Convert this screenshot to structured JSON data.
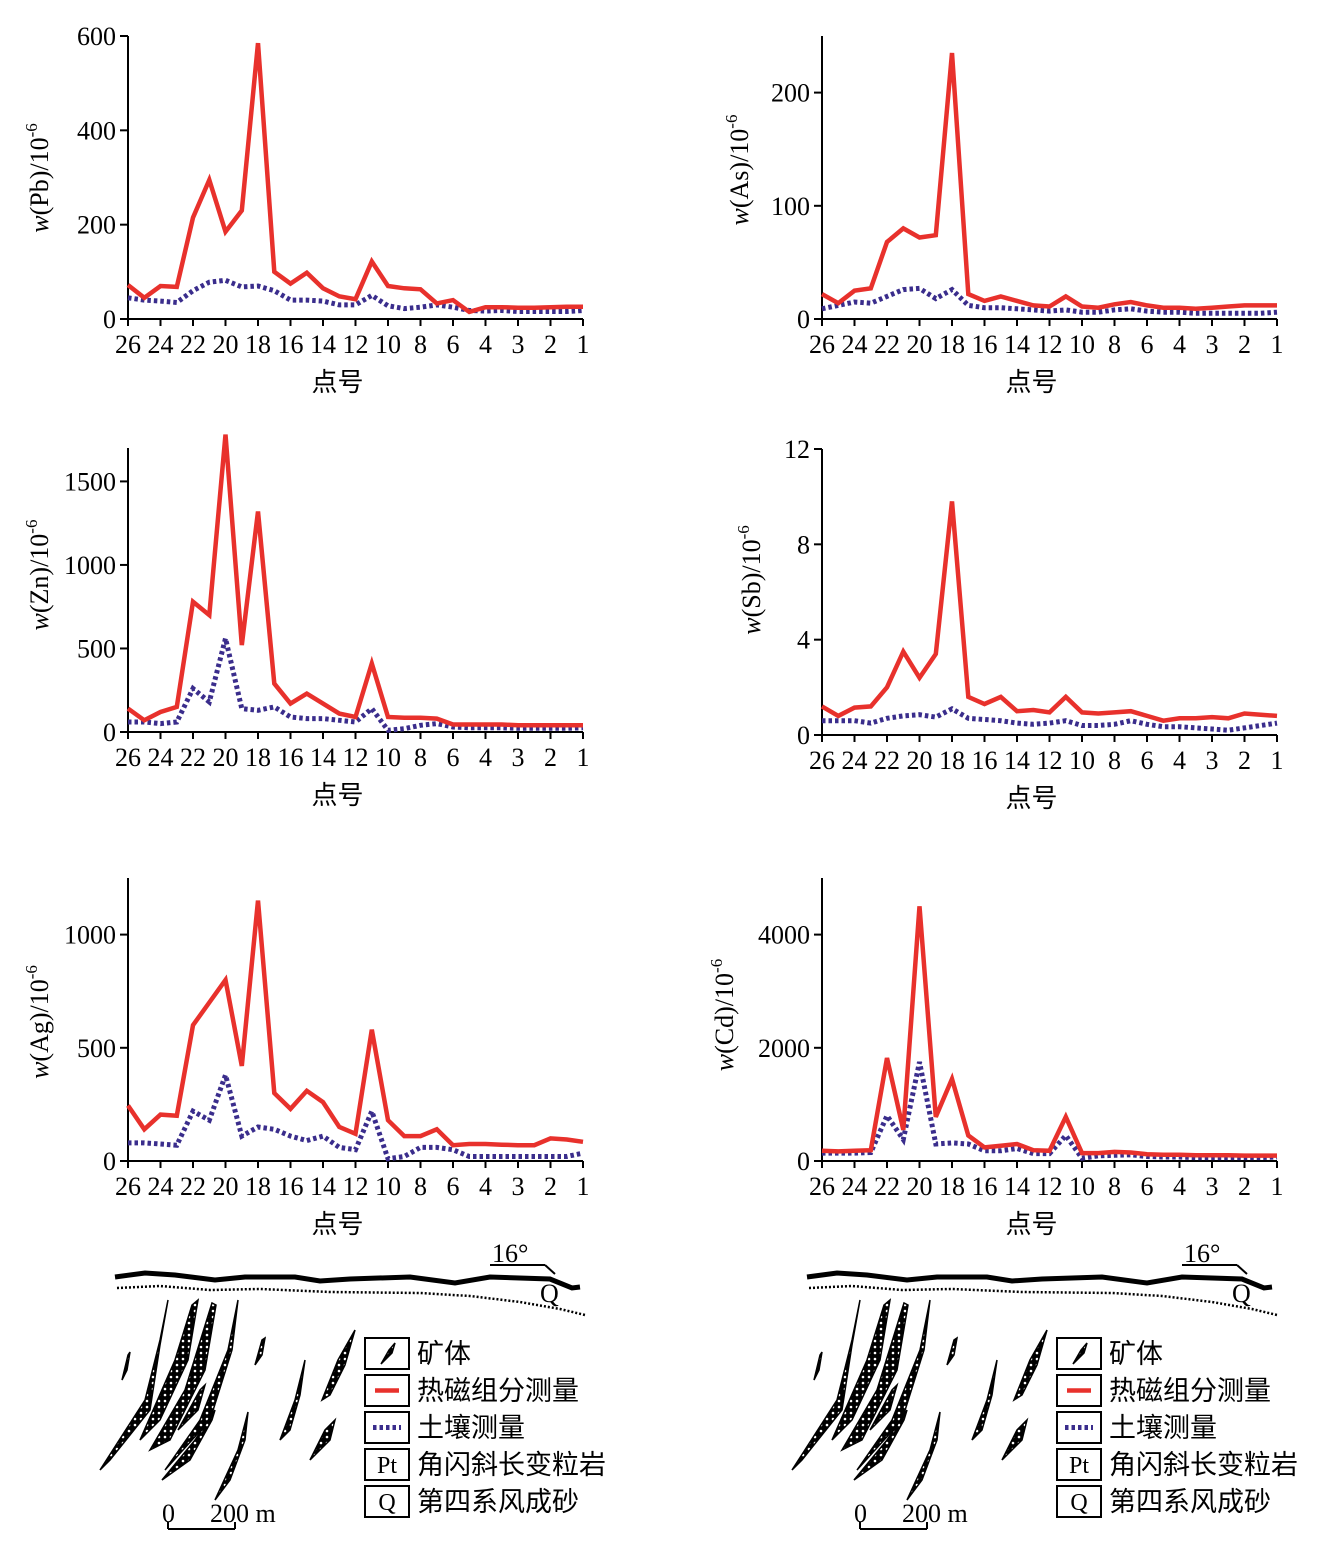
{
  "colors": {
    "heat_magnetic": "#e8312c",
    "soil": "#3a2d8c",
    "axis": "#000000"
  },
  "x_tick_labels": [
    "26",
    "24",
    "22",
    "20",
    "18",
    "16",
    "14",
    "12",
    "10",
    "8",
    "6",
    "4",
    "3",
    "2",
    "1"
  ],
  "chart_data": [
    {
      "type": "line",
      "ylabel": "w(Pb)/10",
      "ylabel_exponent": "-6",
      "xlabel": "点号",
      "ylim": [
        0,
        600
      ],
      "yticks": [
        0,
        200,
        400,
        600
      ],
      "series": [
        {
          "name": "热磁组分测量",
          "values": [
            72,
            45,
            70,
            68,
            215,
            295,
            185,
            230,
            585,
            100,
            75,
            98,
            65,
            48,
            42,
            122,
            70,
            65,
            63,
            33,
            40,
            15,
            25,
            25,
            24,
            24,
            25,
            26,
            26
          ]
        },
        {
          "name": "土壤测量",
          "values": [
            45,
            40,
            38,
            35,
            60,
            78,
            82,
            68,
            70,
            60,
            40,
            40,
            38,
            30,
            30,
            50,
            28,
            22,
            25,
            30,
            25,
            18,
            17,
            18,
            16,
            16,
            16,
            16,
            18
          ]
        }
      ]
    },
    {
      "type": "line",
      "ylabel": "w(As)/10",
      "ylabel_exponent": "-6",
      "xlabel": "点号",
      "ylim": [
        0,
        250
      ],
      "yticks": [
        0,
        100,
        200
      ],
      "series": [
        {
          "name": "热磁组分测量",
          "values": [
            22,
            14,
            25,
            27,
            68,
            80,
            72,
            74,
            235,
            22,
            16,
            20,
            16,
            12,
            11,
            20,
            11,
            10,
            13,
            15,
            12,
            10,
            10,
            9,
            10,
            11,
            12,
            12,
            12
          ]
        },
        {
          "name": "土壤测量",
          "values": [
            9,
            12,
            15,
            14,
            20,
            26,
            27,
            18,
            26,
            12,
            10,
            10,
            9,
            8,
            7,
            8,
            6,
            6,
            8,
            9,
            7,
            6,
            6,
            5,
            5,
            5,
            5,
            5,
            6
          ]
        }
      ]
    },
    {
      "type": "line",
      "ylabel": "w(Zn)/10",
      "ylabel_exponent": "-6",
      "xlabel": "点号",
      "ylim": [
        0,
        1700
      ],
      "yticks": [
        0,
        500,
        1000,
        1500
      ],
      "series": [
        {
          "name": "热磁组分测量",
          "values": [
            140,
            70,
            120,
            150,
            780,
            700,
            1780,
            520,
            1320,
            290,
            170,
            230,
            170,
            110,
            90,
            410,
            90,
            85,
            85,
            80,
            45,
            45,
            45,
            45,
            40,
            40,
            40,
            40,
            40
          ]
        },
        {
          "name": "土壤测量",
          "values": [
            60,
            60,
            50,
            60,
            260,
            180,
            560,
            140,
            130,
            150,
            90,
            80,
            80,
            70,
            60,
            140,
            10,
            20,
            40,
            50,
            30,
            25,
            25,
            25,
            22,
            22,
            22,
            22,
            25
          ]
        }
      ]
    },
    {
      "type": "line",
      "ylabel": "w(Sb)/10",
      "ylabel_exponent": "-6",
      "xlabel": "点号",
      "ylim": [
        0,
        12
      ],
      "yticks": [
        0,
        4,
        8,
        12
      ],
      "series": [
        {
          "name": "热磁组分测量",
          "values": [
            1.2,
            0.8,
            1.15,
            1.2,
            2.0,
            3.5,
            2.4,
            3.4,
            9.8,
            1.6,
            1.3,
            1.6,
            1.0,
            1.05,
            0.95,
            1.6,
            0.95,
            0.9,
            0.95,
            1.0,
            0.8,
            0.6,
            0.7,
            0.7,
            0.75,
            0.7,
            0.9,
            0.85,
            0.8
          ]
        },
        {
          "name": "土壤测量",
          "values": [
            0.6,
            0.6,
            0.6,
            0.5,
            0.7,
            0.8,
            0.85,
            0.75,
            1.1,
            0.7,
            0.65,
            0.6,
            0.5,
            0.45,
            0.5,
            0.6,
            0.4,
            0.4,
            0.45,
            0.6,
            0.45,
            0.35,
            0.35,
            0.3,
            0.25,
            0.2,
            0.3,
            0.4,
            0.5
          ]
        }
      ]
    },
    {
      "type": "line",
      "ylabel": "w(Ag)/10",
      "ylabel_exponent": "-6",
      "xlabel": "点号",
      "ylim": [
        0,
        1250
      ],
      "yticks": [
        0,
        500,
        1000
      ],
      "series": [
        {
          "name": "热磁组分测量",
          "values": [
            245,
            140,
            205,
            200,
            600,
            700,
            800,
            420,
            1150,
            300,
            230,
            310,
            260,
            150,
            120,
            580,
            180,
            110,
            110,
            140,
            70,
            75,
            75,
            72,
            70,
            70,
            100,
            95,
            85
          ]
        },
        {
          "name": "土壤测量",
          "values": [
            80,
            80,
            75,
            70,
            220,
            180,
            380,
            110,
            150,
            140,
            110,
            90,
            110,
            60,
            50,
            220,
            10,
            20,
            60,
            60,
            50,
            20,
            20,
            20,
            20,
            20,
            20,
            20,
            35
          ]
        }
      ]
    },
    {
      "type": "line",
      "ylabel": "w(Cd)/10",
      "ylabel_exponent": "-6",
      "xlabel": "点号",
      "ylim": [
        0,
        5000
      ],
      "yticks": [
        0,
        2000,
        4000
      ],
      "series": [
        {
          "name": "热磁组分测量",
          "values": [
            180,
            170,
            180,
            190,
            1820,
            550,
            4500,
            780,
            1450,
            450,
            240,
            270,
            300,
            190,
            180,
            780,
            140,
            140,
            160,
            150,
            120,
            110,
            110,
            100,
            100,
            100,
            95,
            95,
            95
          ]
        },
        {
          "name": "土壤测量",
          "values": [
            140,
            140,
            140,
            150,
            800,
            380,
            1750,
            300,
            320,
            300,
            180,
            180,
            220,
            130,
            130,
            450,
            50,
            90,
            100,
            110,
            80,
            70,
            70,
            60,
            60,
            60,
            60,
            60,
            70
          ]
        }
      ]
    }
  ],
  "geology": {
    "dip_label": "16°",
    "quaternary_label": "Q",
    "scale_zero": "0",
    "scale_label": "200 m"
  },
  "legend": {
    "items": [
      {
        "key": "ore",
        "symbol": "",
        "label": "矿体"
      },
      {
        "key": "heat",
        "symbol": "",
        "label": "热磁组分测量"
      },
      {
        "key": "soil",
        "symbol": "",
        "label": "土壤测量"
      },
      {
        "key": "pt",
        "symbol": "Pt",
        "label": "角闪斜长变粒岩"
      },
      {
        "key": "q",
        "symbol": "Q",
        "label": "第四系风成砂"
      }
    ]
  }
}
